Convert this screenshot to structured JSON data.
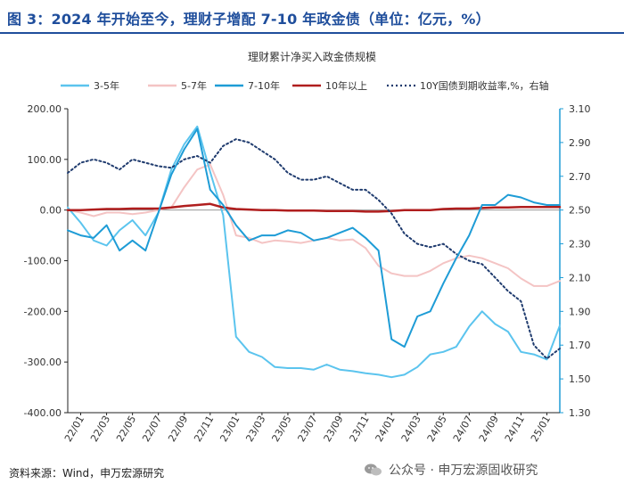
{
  "header": {
    "figure_title": "图 3：2024 年开始至今，理财子增配 7-10 年政金债（单位：亿元，%）"
  },
  "footer": {
    "source": "资料来源：Wind，申万宏源研究",
    "watermark": "公众号 · 申万宏源固收研究"
  },
  "chart_data": {
    "type": "line",
    "title": "理财累计净买入政金债规模",
    "x_tick_labels": [
      "22/01",
      "22/03",
      "22/05",
      "22/07",
      "22/09",
      "22/11",
      "23/01",
      "23/03",
      "23/05",
      "23/07",
      "23/09",
      "23/11",
      "24/01",
      "24/03",
      "24/05",
      "24/07",
      "24/09",
      "24/11",
      "25/01"
    ],
    "ylim_left": [
      -400,
      200
    ],
    "left_ticks": [
      "200.00",
      "100.00",
      "0.00",
      "-100.00",
      "-200.00",
      "-300.00",
      "-400.00"
    ],
    "ylim_right": [
      1.3,
      3.1
    ],
    "right_ticks": [
      "3.10",
      "2.90",
      "2.70",
      "2.50",
      "2.30",
      "2.10",
      "1.90",
      "1.70",
      "1.50",
      "1.30"
    ],
    "legend_position": "top",
    "colors": {
      "s_3_5": "#5bc4ee",
      "s_5_7": "#f4c4c4",
      "s_7_10": "#1e9cd6",
      "s_10plus": "#b01e1e",
      "yield_10y": "#1f3b6e",
      "axis_left": "#222222",
      "axis_right": "#1e9cd6"
    },
    "x": [
      0,
      1,
      2,
      3,
      4,
      5,
      6,
      7,
      8,
      9,
      10,
      11,
      12,
      13,
      14,
      15,
      16,
      17,
      18,
      19,
      20,
      21,
      22,
      23,
      24,
      25,
      26,
      27,
      28,
      29,
      30,
      31,
      32,
      33,
      34,
      35,
      36,
      37,
      38
    ],
    "series": [
      {
        "key": "s_3_5",
        "name": "3-5年",
        "axis": "left",
        "values": [
          5,
          -25,
          -60,
          -70,
          -40,
          -20,
          -50,
          -5,
          80,
          130,
          165,
          75,
          -10,
          -250,
          -280,
          -290,
          -310,
          -312,
          -312,
          -315,
          -305,
          -315,
          -318,
          -322,
          -325,
          -330,
          -325,
          -310,
          -285,
          -280,
          -270,
          -230,
          -200,
          -225,
          -240,
          -280,
          -285,
          -295,
          -228
        ]
      },
      {
        "key": "s_5_7",
        "name": "5-7年",
        "axis": "left",
        "values": [
          0,
          -5,
          -12,
          -5,
          -5,
          -8,
          -5,
          0,
          5,
          45,
          80,
          90,
          30,
          -50,
          -55,
          -65,
          -60,
          -62,
          -65,
          -60,
          -55,
          -60,
          -58,
          -75,
          -110,
          -125,
          -130,
          -130,
          -120,
          -105,
          -95,
          -90,
          -95,
          -105,
          -115,
          -135,
          -150,
          -150,
          -140
        ]
      },
      {
        "key": "s_7_10",
        "name": "7-10年",
        "axis": "left",
        "values": [
          -40,
          -50,
          -55,
          -30,
          -80,
          -60,
          -80,
          -5,
          70,
          120,
          160,
          40,
          10,
          -30,
          -60,
          -50,
          -50,
          -40,
          -45,
          -60,
          -55,
          -45,
          -35,
          -55,
          -80,
          -255,
          -270,
          -210,
          -200,
          -145,
          -95,
          -50,
          10,
          10,
          30,
          25,
          15,
          10,
          10
        ]
      },
      {
        "key": "s_10plus",
        "name": "10年以上",
        "axis": "left",
        "values": [
          0,
          0,
          1,
          2,
          2,
          3,
          3,
          3,
          5,
          8,
          10,
          12,
          5,
          2,
          1,
          0,
          0,
          -1,
          -1,
          -1,
          -2,
          -2,
          -2,
          -3,
          -3,
          -2,
          0,
          0,
          0,
          2,
          3,
          3,
          4,
          5,
          5,
          6,
          6,
          6,
          6
        ]
      },
      {
        "key": "yield_10y",
        "name": "10Y国债到期收益率,%，右轴",
        "axis": "right",
        "values": [
          2.72,
          2.78,
          2.8,
          2.78,
          2.74,
          2.8,
          2.78,
          2.76,
          2.75,
          2.8,
          2.82,
          2.78,
          2.88,
          2.92,
          2.9,
          2.85,
          2.8,
          2.72,
          2.68,
          2.68,
          2.7,
          2.66,
          2.62,
          2.62,
          2.56,
          2.48,
          2.36,
          2.3,
          2.28,
          2.3,
          2.24,
          2.2,
          2.18,
          2.1,
          2.02,
          1.96,
          1.7,
          1.62,
          1.68
        ]
      }
    ]
  }
}
